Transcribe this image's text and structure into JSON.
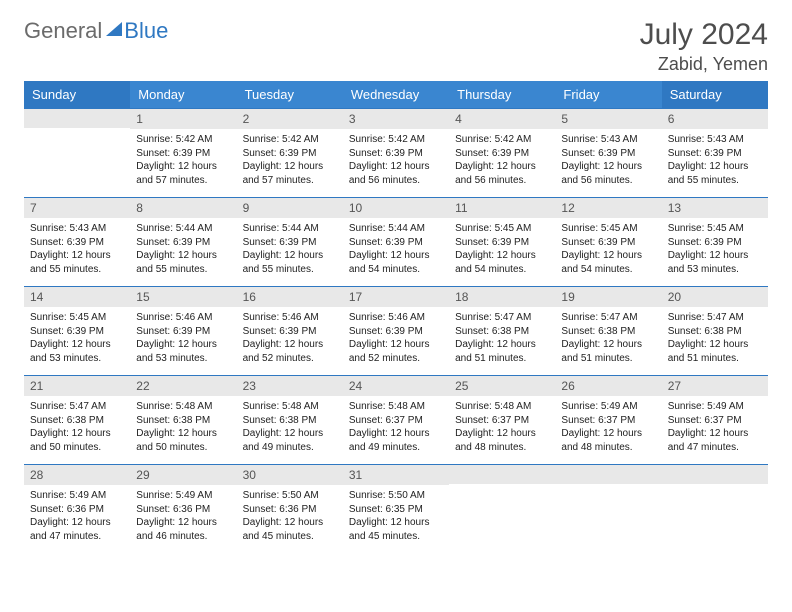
{
  "logo": {
    "general": "General",
    "blue": "Blue"
  },
  "header": {
    "month_title": "July 2024",
    "location": "Zabid, Yemen"
  },
  "colors": {
    "header_bg_default": "#3a86d0",
    "header_bg_weekend": "#2f78c2",
    "accent_line": "#2f78c2",
    "daynum_bg": "#e8e8e8",
    "text_muted": "#555555"
  },
  "weekdays": [
    "Sunday",
    "Monday",
    "Tuesday",
    "Wednesday",
    "Thursday",
    "Friday",
    "Saturday"
  ],
  "weeks": [
    [
      {
        "n": "",
        "sunrise": "",
        "sunset": "",
        "daylight": ""
      },
      {
        "n": "1",
        "sunrise": "Sunrise: 5:42 AM",
        "sunset": "Sunset: 6:39 PM",
        "daylight": "Daylight: 12 hours and 57 minutes."
      },
      {
        "n": "2",
        "sunrise": "Sunrise: 5:42 AM",
        "sunset": "Sunset: 6:39 PM",
        "daylight": "Daylight: 12 hours and 57 minutes."
      },
      {
        "n": "3",
        "sunrise": "Sunrise: 5:42 AM",
        "sunset": "Sunset: 6:39 PM",
        "daylight": "Daylight: 12 hours and 56 minutes."
      },
      {
        "n": "4",
        "sunrise": "Sunrise: 5:42 AM",
        "sunset": "Sunset: 6:39 PM",
        "daylight": "Daylight: 12 hours and 56 minutes."
      },
      {
        "n": "5",
        "sunrise": "Sunrise: 5:43 AM",
        "sunset": "Sunset: 6:39 PM",
        "daylight": "Daylight: 12 hours and 56 minutes."
      },
      {
        "n": "6",
        "sunrise": "Sunrise: 5:43 AM",
        "sunset": "Sunset: 6:39 PM",
        "daylight": "Daylight: 12 hours and 55 minutes."
      }
    ],
    [
      {
        "n": "7",
        "sunrise": "Sunrise: 5:43 AM",
        "sunset": "Sunset: 6:39 PM",
        "daylight": "Daylight: 12 hours and 55 minutes."
      },
      {
        "n": "8",
        "sunrise": "Sunrise: 5:44 AM",
        "sunset": "Sunset: 6:39 PM",
        "daylight": "Daylight: 12 hours and 55 minutes."
      },
      {
        "n": "9",
        "sunrise": "Sunrise: 5:44 AM",
        "sunset": "Sunset: 6:39 PM",
        "daylight": "Daylight: 12 hours and 55 minutes."
      },
      {
        "n": "10",
        "sunrise": "Sunrise: 5:44 AM",
        "sunset": "Sunset: 6:39 PM",
        "daylight": "Daylight: 12 hours and 54 minutes."
      },
      {
        "n": "11",
        "sunrise": "Sunrise: 5:45 AM",
        "sunset": "Sunset: 6:39 PM",
        "daylight": "Daylight: 12 hours and 54 minutes."
      },
      {
        "n": "12",
        "sunrise": "Sunrise: 5:45 AM",
        "sunset": "Sunset: 6:39 PM",
        "daylight": "Daylight: 12 hours and 54 minutes."
      },
      {
        "n": "13",
        "sunrise": "Sunrise: 5:45 AM",
        "sunset": "Sunset: 6:39 PM",
        "daylight": "Daylight: 12 hours and 53 minutes."
      }
    ],
    [
      {
        "n": "14",
        "sunrise": "Sunrise: 5:45 AM",
        "sunset": "Sunset: 6:39 PM",
        "daylight": "Daylight: 12 hours and 53 minutes."
      },
      {
        "n": "15",
        "sunrise": "Sunrise: 5:46 AM",
        "sunset": "Sunset: 6:39 PM",
        "daylight": "Daylight: 12 hours and 53 minutes."
      },
      {
        "n": "16",
        "sunrise": "Sunrise: 5:46 AM",
        "sunset": "Sunset: 6:39 PM",
        "daylight": "Daylight: 12 hours and 52 minutes."
      },
      {
        "n": "17",
        "sunrise": "Sunrise: 5:46 AM",
        "sunset": "Sunset: 6:39 PM",
        "daylight": "Daylight: 12 hours and 52 minutes."
      },
      {
        "n": "18",
        "sunrise": "Sunrise: 5:47 AM",
        "sunset": "Sunset: 6:38 PM",
        "daylight": "Daylight: 12 hours and 51 minutes."
      },
      {
        "n": "19",
        "sunrise": "Sunrise: 5:47 AM",
        "sunset": "Sunset: 6:38 PM",
        "daylight": "Daylight: 12 hours and 51 minutes."
      },
      {
        "n": "20",
        "sunrise": "Sunrise: 5:47 AM",
        "sunset": "Sunset: 6:38 PM",
        "daylight": "Daylight: 12 hours and 51 minutes."
      }
    ],
    [
      {
        "n": "21",
        "sunrise": "Sunrise: 5:47 AM",
        "sunset": "Sunset: 6:38 PM",
        "daylight": "Daylight: 12 hours and 50 minutes."
      },
      {
        "n": "22",
        "sunrise": "Sunrise: 5:48 AM",
        "sunset": "Sunset: 6:38 PM",
        "daylight": "Daylight: 12 hours and 50 minutes."
      },
      {
        "n": "23",
        "sunrise": "Sunrise: 5:48 AM",
        "sunset": "Sunset: 6:38 PM",
        "daylight": "Daylight: 12 hours and 49 minutes."
      },
      {
        "n": "24",
        "sunrise": "Sunrise: 5:48 AM",
        "sunset": "Sunset: 6:37 PM",
        "daylight": "Daylight: 12 hours and 49 minutes."
      },
      {
        "n": "25",
        "sunrise": "Sunrise: 5:48 AM",
        "sunset": "Sunset: 6:37 PM",
        "daylight": "Daylight: 12 hours and 48 minutes."
      },
      {
        "n": "26",
        "sunrise": "Sunrise: 5:49 AM",
        "sunset": "Sunset: 6:37 PM",
        "daylight": "Daylight: 12 hours and 48 minutes."
      },
      {
        "n": "27",
        "sunrise": "Sunrise: 5:49 AM",
        "sunset": "Sunset: 6:37 PM",
        "daylight": "Daylight: 12 hours and 47 minutes."
      }
    ],
    [
      {
        "n": "28",
        "sunrise": "Sunrise: 5:49 AM",
        "sunset": "Sunset: 6:36 PM",
        "daylight": "Daylight: 12 hours and 47 minutes."
      },
      {
        "n": "29",
        "sunrise": "Sunrise: 5:49 AM",
        "sunset": "Sunset: 6:36 PM",
        "daylight": "Daylight: 12 hours and 46 minutes."
      },
      {
        "n": "30",
        "sunrise": "Sunrise: 5:50 AM",
        "sunset": "Sunset: 6:36 PM",
        "daylight": "Daylight: 12 hours and 45 minutes."
      },
      {
        "n": "31",
        "sunrise": "Sunrise: 5:50 AM",
        "sunset": "Sunset: 6:35 PM",
        "daylight": "Daylight: 12 hours and 45 minutes."
      },
      {
        "n": "",
        "sunrise": "",
        "sunset": "",
        "daylight": ""
      },
      {
        "n": "",
        "sunrise": "",
        "sunset": "",
        "daylight": ""
      },
      {
        "n": "",
        "sunrise": "",
        "sunset": "",
        "daylight": ""
      }
    ]
  ]
}
